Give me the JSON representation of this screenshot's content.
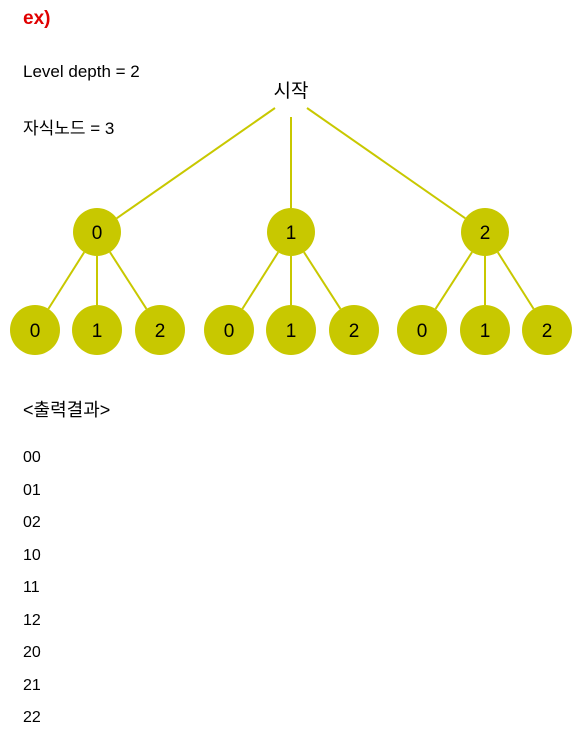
{
  "example_label": "ex)",
  "level_depth": "Level depth = 2",
  "child_nodes": "자식노드 = 3",
  "tree": {
    "root": "시작",
    "level1": [
      "0",
      "1",
      "2"
    ],
    "level2": [
      [
        "0",
        "1",
        "2"
      ],
      [
        "0",
        "1",
        "2"
      ],
      [
        "0",
        "1",
        "2"
      ]
    ]
  },
  "colors": {
    "node_fill": "#c8c800",
    "edge": "#c8c800",
    "example_label": "#e00000"
  },
  "output": {
    "title": "<출력결과>",
    "lines": [
      "00",
      "01",
      "02",
      "10",
      "11",
      "12",
      "20",
      "21",
      "22"
    ]
  }
}
